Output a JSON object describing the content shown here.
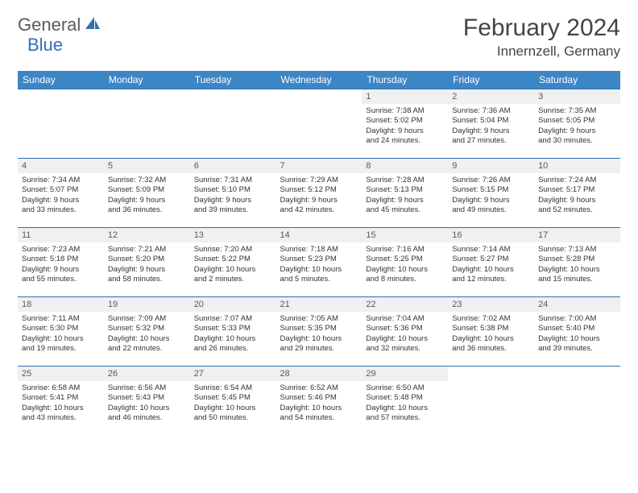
{
  "logo": {
    "part1": "General",
    "part2": "Blue"
  },
  "title": "February 2024",
  "location": "Innernzell, Germany",
  "colors": {
    "header_bg": "#3d86c6",
    "border": "#2f6fb3",
    "daynum_bg": "#eef0f2",
    "text": "#333333",
    "logo_gray": "#5a5a5a",
    "logo_blue": "#2f6fb3"
  },
  "day_headers": [
    "Sunday",
    "Monday",
    "Tuesday",
    "Wednesday",
    "Thursday",
    "Friday",
    "Saturday"
  ],
  "weeks": [
    [
      null,
      null,
      null,
      null,
      {
        "n": "1",
        "sr": "Sunrise: 7:38 AM",
        "ss": "Sunset: 5:02 PM",
        "d1": "Daylight: 9 hours",
        "d2": "and 24 minutes."
      },
      {
        "n": "2",
        "sr": "Sunrise: 7:36 AM",
        "ss": "Sunset: 5:04 PM",
        "d1": "Daylight: 9 hours",
        "d2": "and 27 minutes."
      },
      {
        "n": "3",
        "sr": "Sunrise: 7:35 AM",
        "ss": "Sunset: 5:05 PM",
        "d1": "Daylight: 9 hours",
        "d2": "and 30 minutes."
      }
    ],
    [
      {
        "n": "4",
        "sr": "Sunrise: 7:34 AM",
        "ss": "Sunset: 5:07 PM",
        "d1": "Daylight: 9 hours",
        "d2": "and 33 minutes."
      },
      {
        "n": "5",
        "sr": "Sunrise: 7:32 AM",
        "ss": "Sunset: 5:09 PM",
        "d1": "Daylight: 9 hours",
        "d2": "and 36 minutes."
      },
      {
        "n": "6",
        "sr": "Sunrise: 7:31 AM",
        "ss": "Sunset: 5:10 PM",
        "d1": "Daylight: 9 hours",
        "d2": "and 39 minutes."
      },
      {
        "n": "7",
        "sr": "Sunrise: 7:29 AM",
        "ss": "Sunset: 5:12 PM",
        "d1": "Daylight: 9 hours",
        "d2": "and 42 minutes."
      },
      {
        "n": "8",
        "sr": "Sunrise: 7:28 AM",
        "ss": "Sunset: 5:13 PM",
        "d1": "Daylight: 9 hours",
        "d2": "and 45 minutes."
      },
      {
        "n": "9",
        "sr": "Sunrise: 7:26 AM",
        "ss": "Sunset: 5:15 PM",
        "d1": "Daylight: 9 hours",
        "d2": "and 49 minutes."
      },
      {
        "n": "10",
        "sr": "Sunrise: 7:24 AM",
        "ss": "Sunset: 5:17 PM",
        "d1": "Daylight: 9 hours",
        "d2": "and 52 minutes."
      }
    ],
    [
      {
        "n": "11",
        "sr": "Sunrise: 7:23 AM",
        "ss": "Sunset: 5:18 PM",
        "d1": "Daylight: 9 hours",
        "d2": "and 55 minutes."
      },
      {
        "n": "12",
        "sr": "Sunrise: 7:21 AM",
        "ss": "Sunset: 5:20 PM",
        "d1": "Daylight: 9 hours",
        "d2": "and 58 minutes."
      },
      {
        "n": "13",
        "sr": "Sunrise: 7:20 AM",
        "ss": "Sunset: 5:22 PM",
        "d1": "Daylight: 10 hours",
        "d2": "and 2 minutes."
      },
      {
        "n": "14",
        "sr": "Sunrise: 7:18 AM",
        "ss": "Sunset: 5:23 PM",
        "d1": "Daylight: 10 hours",
        "d2": "and 5 minutes."
      },
      {
        "n": "15",
        "sr": "Sunrise: 7:16 AM",
        "ss": "Sunset: 5:25 PM",
        "d1": "Daylight: 10 hours",
        "d2": "and 8 minutes."
      },
      {
        "n": "16",
        "sr": "Sunrise: 7:14 AM",
        "ss": "Sunset: 5:27 PM",
        "d1": "Daylight: 10 hours",
        "d2": "and 12 minutes."
      },
      {
        "n": "17",
        "sr": "Sunrise: 7:13 AM",
        "ss": "Sunset: 5:28 PM",
        "d1": "Daylight: 10 hours",
        "d2": "and 15 minutes."
      }
    ],
    [
      {
        "n": "18",
        "sr": "Sunrise: 7:11 AM",
        "ss": "Sunset: 5:30 PM",
        "d1": "Daylight: 10 hours",
        "d2": "and 19 minutes."
      },
      {
        "n": "19",
        "sr": "Sunrise: 7:09 AM",
        "ss": "Sunset: 5:32 PM",
        "d1": "Daylight: 10 hours",
        "d2": "and 22 minutes."
      },
      {
        "n": "20",
        "sr": "Sunrise: 7:07 AM",
        "ss": "Sunset: 5:33 PM",
        "d1": "Daylight: 10 hours",
        "d2": "and 26 minutes."
      },
      {
        "n": "21",
        "sr": "Sunrise: 7:05 AM",
        "ss": "Sunset: 5:35 PM",
        "d1": "Daylight: 10 hours",
        "d2": "and 29 minutes."
      },
      {
        "n": "22",
        "sr": "Sunrise: 7:04 AM",
        "ss": "Sunset: 5:36 PM",
        "d1": "Daylight: 10 hours",
        "d2": "and 32 minutes."
      },
      {
        "n": "23",
        "sr": "Sunrise: 7:02 AM",
        "ss": "Sunset: 5:38 PM",
        "d1": "Daylight: 10 hours",
        "d2": "and 36 minutes."
      },
      {
        "n": "24",
        "sr": "Sunrise: 7:00 AM",
        "ss": "Sunset: 5:40 PM",
        "d1": "Daylight: 10 hours",
        "d2": "and 39 minutes."
      }
    ],
    [
      {
        "n": "25",
        "sr": "Sunrise: 6:58 AM",
        "ss": "Sunset: 5:41 PM",
        "d1": "Daylight: 10 hours",
        "d2": "and 43 minutes."
      },
      {
        "n": "26",
        "sr": "Sunrise: 6:56 AM",
        "ss": "Sunset: 5:43 PM",
        "d1": "Daylight: 10 hours",
        "d2": "and 46 minutes."
      },
      {
        "n": "27",
        "sr": "Sunrise: 6:54 AM",
        "ss": "Sunset: 5:45 PM",
        "d1": "Daylight: 10 hours",
        "d2": "and 50 minutes."
      },
      {
        "n": "28",
        "sr": "Sunrise: 6:52 AM",
        "ss": "Sunset: 5:46 PM",
        "d1": "Daylight: 10 hours",
        "d2": "and 54 minutes."
      },
      {
        "n": "29",
        "sr": "Sunrise: 6:50 AM",
        "ss": "Sunset: 5:48 PM",
        "d1": "Daylight: 10 hours",
        "d2": "and 57 minutes."
      },
      null,
      null
    ]
  ]
}
